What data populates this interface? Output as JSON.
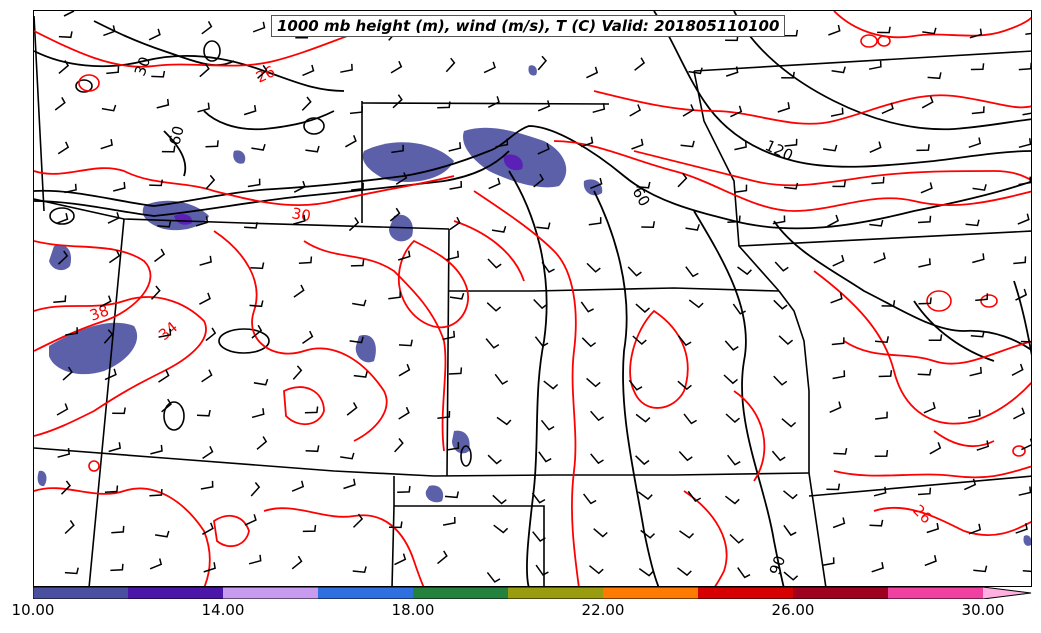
{
  "title": "1000 mb height (m), wind (m/s), T (C) Valid: 201805110100",
  "colors": {
    "height_contour": "#000000",
    "temp_contour": "#ff0000",
    "border": "#000000"
  },
  "height_labels": [
    "30",
    "60",
    "60",
    "120",
    "90"
  ],
  "temp_labels": [
    "26",
    "30",
    "38",
    "34",
    "26"
  ],
  "colorbar": {
    "colors": [
      "#4a4fa0",
      "#4b17a8",
      "#c79cf0",
      "#2f6fe0",
      "#24823e",
      "#9a9c10",
      "#ff7a00",
      "#d60000",
      "#a0001f",
      "#f040a0",
      "#ffb0e0"
    ],
    "ticks": [
      "10.00",
      "14.00",
      "18.00",
      "22.00",
      "26.00",
      "30.00"
    ]
  }
}
